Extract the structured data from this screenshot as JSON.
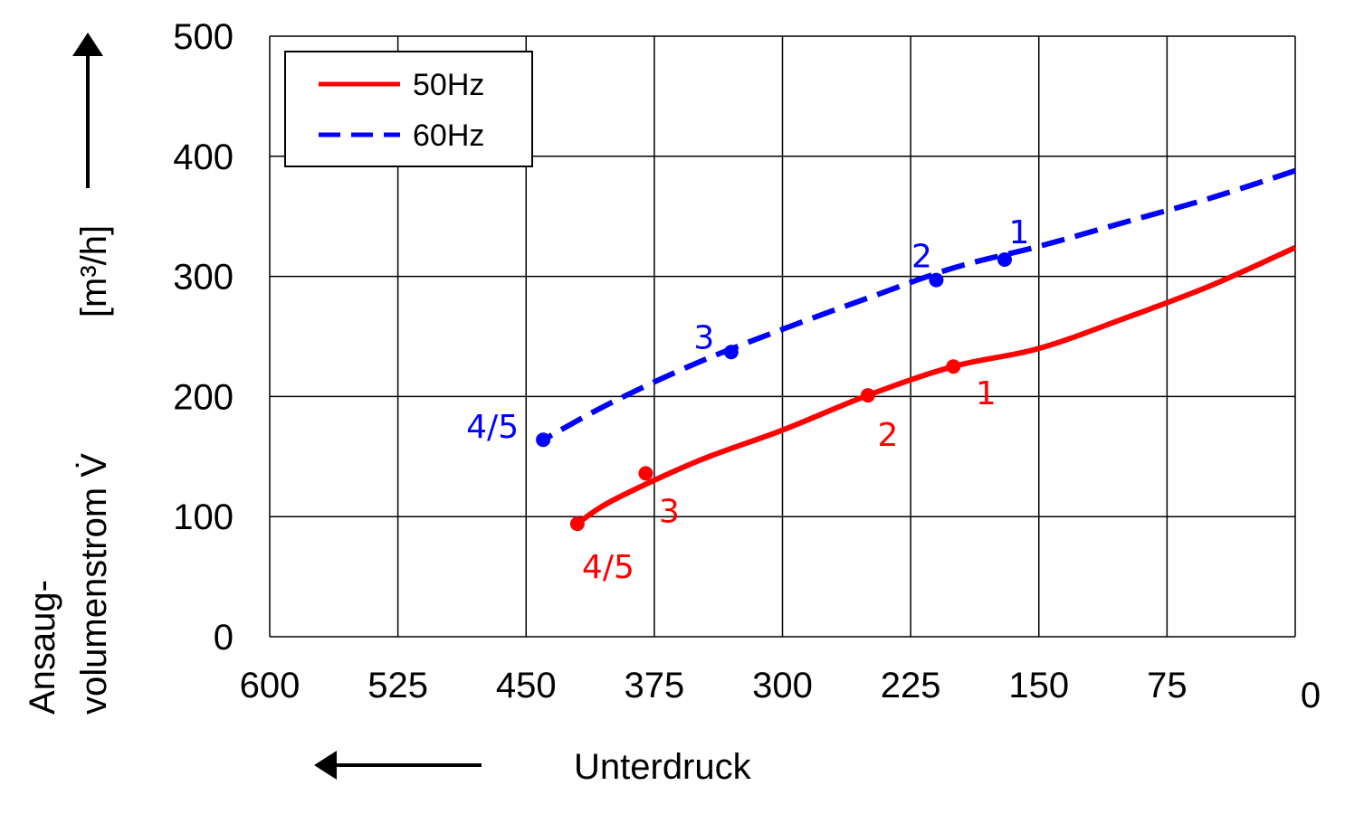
{
  "chart_data": {
    "type": "line",
    "x_axis": {
      "label": "Unterdruck",
      "ticks": [
        600,
        525,
        450,
        375,
        300,
        225,
        150,
        75,
        0
      ],
      "tick_labels": [
        "600",
        "525",
        "450",
        "375",
        "300",
        "225",
        "150",
        "75",
        "0"
      ],
      "range": [
        600,
        0
      ],
      "reversed": true
    },
    "y_axis": {
      "label_line1": "Ansaug-",
      "label_line2": "volumenstrom V̇",
      "unit": "[m³/h]",
      "ticks": [
        0,
        100,
        200,
        300,
        400,
        500
      ],
      "tick_labels": [
        "0",
        "100",
        "200",
        "300",
        "400",
        "500"
      ],
      "range": [
        0,
        500
      ]
    },
    "grid": true,
    "legend": {
      "position": "top-left"
    },
    "series": [
      {
        "name": "50Hz",
        "color": "#ff0000",
        "style": "solid",
        "points": [
          {
            "x": 0,
            "y": 324
          },
          {
            "x": 50,
            "y": 292
          },
          {
            "x": 100,
            "y": 265
          },
          {
            "x": 150,
            "y": 240
          },
          {
            "x": 200,
            "y": 225
          },
          {
            "x": 250,
            "y": 201
          },
          {
            "x": 300,
            "y": 172
          },
          {
            "x": 350,
            "y": 146
          },
          {
            "x": 400,
            "y": 113
          },
          {
            "x": 420,
            "y": 94
          }
        ],
        "markers": [
          {
            "x": 200,
            "y": 225,
            "label": "1"
          },
          {
            "x": 250,
            "y": 201,
            "label": "2"
          },
          {
            "x": 380,
            "y": 136,
            "label": "3"
          },
          {
            "x": 420,
            "y": 94,
            "label": "4/5"
          }
        ]
      },
      {
        "name": "60Hz",
        "color": "#0000ff",
        "style": "dashed",
        "points": [
          {
            "x": 0,
            "y": 388
          },
          {
            "x": 50,
            "y": 365
          },
          {
            "x": 100,
            "y": 345
          },
          {
            "x": 150,
            "y": 325
          },
          {
            "x": 200,
            "y": 307
          },
          {
            "x": 250,
            "y": 282
          },
          {
            "x": 300,
            "y": 256
          },
          {
            "x": 350,
            "y": 228
          },
          {
            "x": 400,
            "y": 195
          },
          {
            "x": 440,
            "y": 164
          }
        ],
        "markers": [
          {
            "x": 170,
            "y": 314,
            "label": "1"
          },
          {
            "x": 210,
            "y": 297,
            "label": "2"
          },
          {
            "x": 330,
            "y": 237,
            "label": "3"
          },
          {
            "x": 440,
            "y": 164,
            "label": "4/5"
          }
        ]
      }
    ]
  }
}
